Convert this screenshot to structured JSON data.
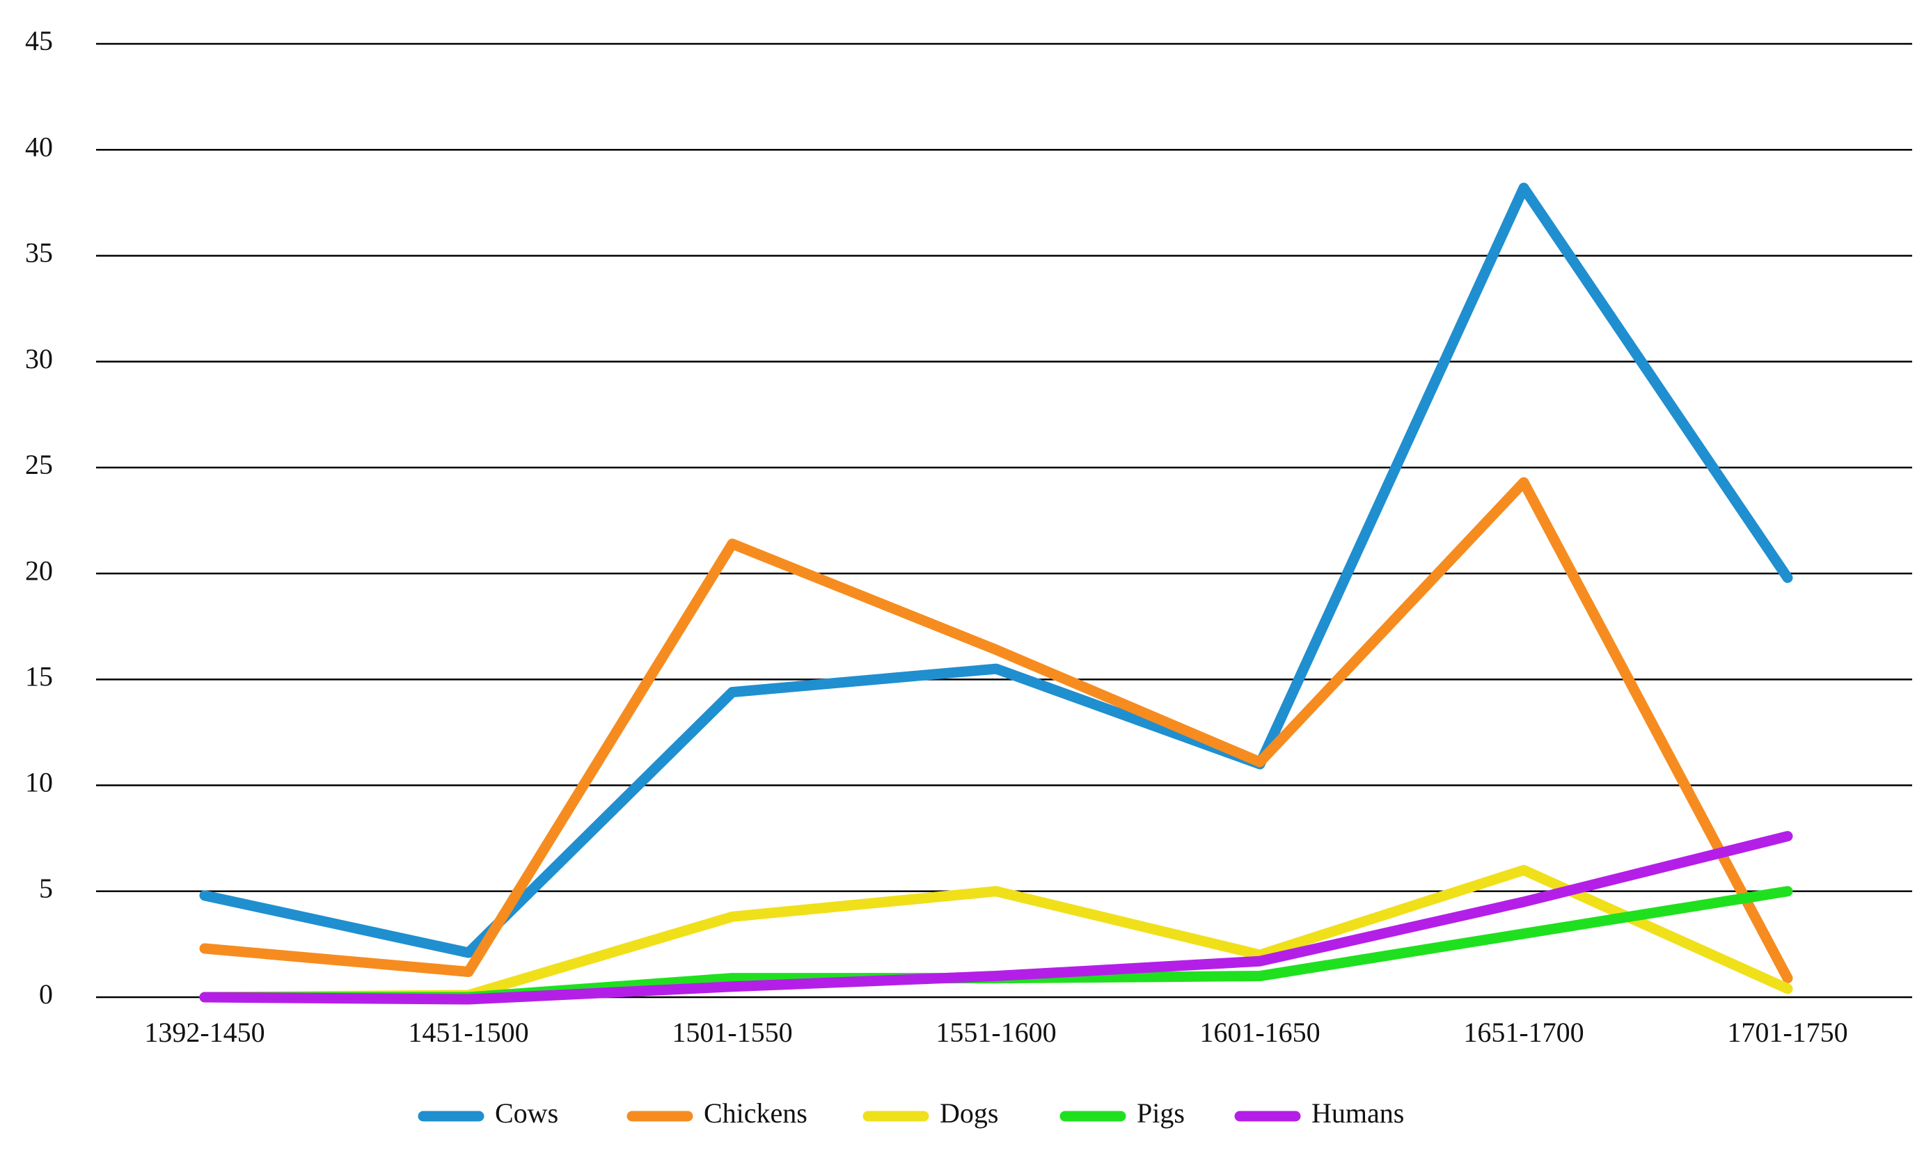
{
  "chart_data": {
    "type": "line",
    "categories": [
      "1392-1450",
      "1451-1500",
      "1501-1550",
      "1551-1600",
      "1601-1650",
      "1651-1700",
      "1701-1750"
    ],
    "series": [
      {
        "name": "Cows",
        "color": "#1f8fd0",
        "values": [
          4.8,
          2.1,
          14.4,
          15.5,
          11.0,
          38.2,
          19.8
        ]
      },
      {
        "name": "Chickens",
        "color": "#f68c1f",
        "values": [
          2.3,
          1.2,
          21.4,
          16.4,
          11.1,
          24.3,
          0.9
        ]
      },
      {
        "name": "Dogs",
        "color": "#f0e01a",
        "values": [
          0,
          0.1,
          3.8,
          5.0,
          2.0,
          6.0,
          0.4
        ]
      },
      {
        "name": "Pigs",
        "color": "#1fe01f",
        "values": [
          0,
          0,
          0.9,
          0.9,
          1.0,
          3.0,
          5.0
        ]
      },
      {
        "name": "Humans",
        "color": "#b41fe8",
        "values": [
          0,
          -0.1,
          0.5,
          1.0,
          1.7,
          4.5,
          7.6
        ]
      }
    ],
    "ylim": [
      0,
      45
    ],
    "yticks": [
      0,
      5,
      10,
      15,
      20,
      25,
      30,
      35,
      40,
      45
    ],
    "grid": true
  }
}
